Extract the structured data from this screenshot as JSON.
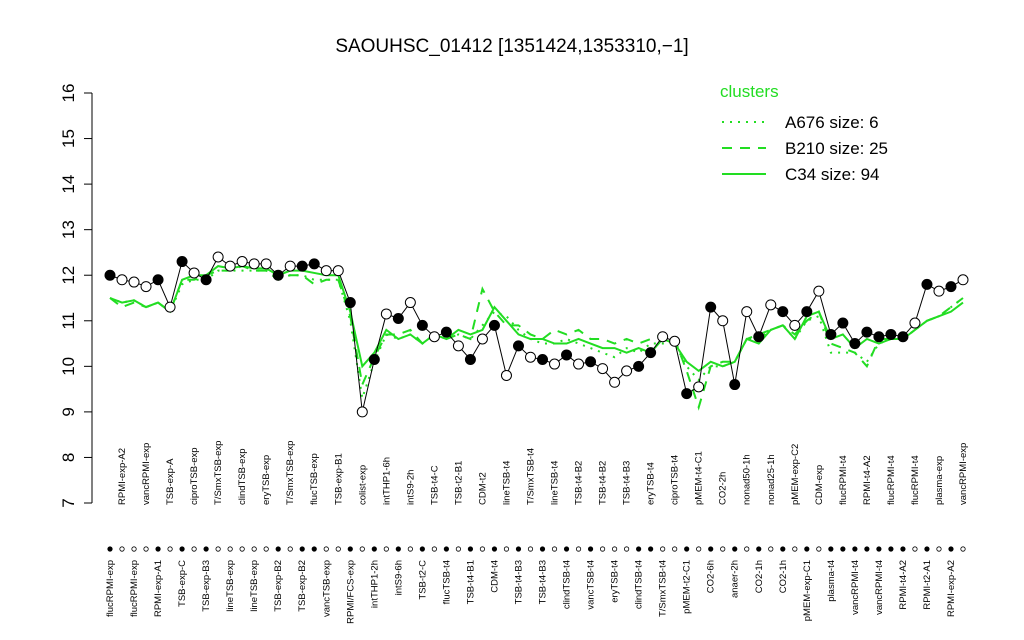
{
  "chart_data": {
    "type": "line",
    "title": "SAOUHSC_01412 [1351424,1353310,−1]",
    "ylim": [
      7,
      16
    ],
    "yticks": [
      7,
      8,
      9,
      10,
      11,
      12,
      13,
      14,
      15,
      16
    ],
    "legend_title": "clusters",
    "legend": "top-right",
    "point_color": "#000000",
    "categories": [
      "flucRPMI-exp",
      "RPMI-exp-A2",
      "flucRPMI-exp",
      "vancRPMI-exp",
      "RPMI-exp-A1",
      "TSB-exp-A",
      "TSB-exp-C",
      "ciproTSB-exp",
      "TSB-exp-B3",
      "T/SmxTSB-exp",
      "lineTSB-exp",
      "clindTSB-exp",
      "lineTSB-exp",
      "eryTSB-exp",
      "TSB-exp-B2",
      "T/SmxTSB-exp",
      "TSB-exp-B2",
      "flucTSB-exp",
      "vancTSB-exp",
      "TSB-exp-B1",
      "RPMI/FCS-exp",
      "colist-exp",
      "intTHP1-2h",
      "intTHP1-6h",
      "intS9-6h",
      "intS9-2h",
      "TSB-t2-C",
      "TSB-t4-C",
      "flucTSB-t4",
      "TSB-t2-B1",
      "TSB-t4-B1",
      "CDM-t2",
      "CDM-t4",
      "lineTSB-t4",
      "TSB-t4-B3",
      "T/SmxTSB-t4",
      "TSB-t4-B3",
      "lineTSB-t4",
      "clindTSB-t4",
      "TSB-t4-B2",
      "vancTSB-t4",
      "TSB-t4-B2",
      "eryTSB-t4",
      "TSB-t4-B3",
      "clindTSB-t4",
      "eryTSB-t4",
      "T/SmxTSB-t4",
      "ciproTSB-t4",
      "pMEM-t2-C1",
      "pMEM-t4-C1",
      "CO2-6h",
      "CO2-2h",
      "anaer-2h",
      "nonad50-1h",
      "CO2-1h",
      "nonad25-1h",
      "CO2-1h",
      "pMEM-exp-C2",
      "pMEM-exp-C1",
      "CDM-exp",
      "plasma-t4",
      "flucRPMI-t4",
      "vancRPMI-t4",
      "RPMI-t4-A2",
      "vancRPMI-t4",
      "flucRPMI-t4",
      "RPMI-t4-A2",
      "flucRPMI-t4",
      "RPMI-t2-A1",
      "plasma-exp",
      "RPMI-exp-A2",
      "vancRPMI-exp"
    ],
    "values": [
      12.0,
      11.9,
      11.85,
      11.75,
      11.9,
      11.3,
      12.3,
      12.05,
      11.9,
      12.4,
      12.2,
      12.3,
      12.25,
      12.25,
      12.0,
      12.2,
      12.2,
      12.25,
      12.1,
      12.1,
      11.4,
      9.0,
      10.15,
      11.15,
      11.05,
      11.4,
      10.9,
      10.65,
      10.75,
      10.45,
      10.15,
      10.6,
      10.9,
      9.8,
      10.45,
      10.2,
      10.15,
      10.05,
      10.25,
      10.05,
      10.1,
      9.95,
      9.65,
      9.9,
      10.0,
      10.3,
      10.65,
      10.55,
      9.4,
      9.55,
      11.3,
      11.0,
      9.6,
      11.2,
      10.65,
      11.35,
      11.2,
      10.9,
      11.2,
      11.65,
      10.7,
      10.95,
      10.5,
      10.75,
      10.65,
      10.7,
      10.65,
      10.95,
      11.8,
      11.65,
      11.75,
      11.9
    ],
    "filled": [
      true,
      false,
      false,
      false,
      true,
      false,
      true,
      false,
      true,
      false,
      false,
      false,
      false,
      false,
      true,
      false,
      true,
      true,
      false,
      false,
      true,
      false,
      true,
      false,
      true,
      false,
      true,
      false,
      true,
      false,
      true,
      false,
      true,
      false,
      true,
      false,
      true,
      false,
      true,
      false,
      true,
      false,
      false,
      false,
      true,
      true,
      false,
      false,
      true,
      false,
      true,
      false,
      true,
      false,
      true,
      false,
      true,
      false,
      true,
      false,
      true,
      true,
      true,
      true,
      true,
      true,
      true,
      false,
      true,
      false,
      true,
      false
    ],
    "series": [
      {
        "name": "A676 size: 6",
        "color": "#22dd22",
        "dash": "dotted",
        "values": [
          11.5,
          11.4,
          11.45,
          11.3,
          11.4,
          11.2,
          11.8,
          11.9,
          11.9,
          12.1,
          12.1,
          12.1,
          12.1,
          12.1,
          12.0,
          12.0,
          12.0,
          11.9,
          11.9,
          11.9,
          11.0,
          9.3,
          10.1,
          10.7,
          10.6,
          10.7,
          10.5,
          10.7,
          10.6,
          10.7,
          10.6,
          10.9,
          11.2,
          11.1,
          10.8,
          10.6,
          10.5,
          10.5,
          10.6,
          10.5,
          10.4,
          10.3,
          10.2,
          10.4,
          10.3,
          10.5,
          10.5,
          10.5,
          10.0,
          9.7,
          10.0,
          10.0,
          10.1,
          10.6,
          10.6,
          10.8,
          10.9,
          10.6,
          11.0,
          11.1,
          10.3,
          10.3,
          10.3,
          10.1,
          10.5,
          10.6,
          10.6,
          10.8,
          11.0,
          11.1,
          11.3,
          11.5
        ]
      },
      {
        "name": "B210 size: 25",
        "color": "#22dd22",
        "dash": "dashed",
        "values": [
          11.5,
          11.3,
          11.4,
          11.3,
          11.4,
          11.2,
          11.9,
          11.9,
          12.0,
          12.1,
          12.1,
          12.2,
          12.1,
          12.1,
          11.9,
          12.0,
          12.0,
          11.8,
          11.9,
          11.9,
          11.1,
          9.6,
          10.2,
          10.7,
          10.7,
          10.8,
          10.5,
          10.7,
          10.6,
          10.7,
          10.6,
          11.7,
          11.2,
          10.9,
          10.9,
          10.7,
          10.6,
          10.8,
          10.7,
          10.8,
          10.6,
          10.6,
          10.5,
          10.6,
          10.5,
          10.6,
          10.7,
          10.6,
          9.9,
          9.1,
          10.0,
          10.1,
          10.1,
          10.6,
          10.7,
          10.8,
          10.9,
          10.7,
          11.0,
          11.2,
          10.5,
          10.4,
          10.3,
          10.0,
          10.6,
          10.6,
          10.6,
          10.8,
          11.0,
          11.1,
          11.3,
          11.5
        ]
      },
      {
        "name": "C34 size: 94",
        "color": "#22dd22",
        "dash": "solid",
        "values": [
          11.5,
          11.4,
          11.45,
          11.3,
          11.4,
          11.2,
          11.9,
          12.0,
          12.0,
          12.2,
          12.15,
          12.2,
          12.15,
          12.15,
          12.0,
          12.1,
          12.1,
          12.05,
          12.0,
          12.0,
          11.2,
          10.0,
          10.3,
          10.8,
          10.6,
          10.7,
          10.5,
          10.7,
          10.6,
          10.8,
          10.7,
          10.8,
          11.3,
          11.0,
          10.7,
          10.6,
          10.6,
          10.5,
          10.5,
          10.6,
          10.5,
          10.4,
          10.4,
          10.3,
          10.4,
          10.3,
          10.6,
          10.5,
          10.1,
          9.9,
          10.1,
          10.0,
          10.1,
          10.6,
          10.5,
          10.8,
          10.9,
          10.6,
          11.1,
          11.2,
          10.6,
          10.7,
          10.4,
          10.6,
          10.5,
          10.6,
          10.6,
          10.8,
          11.0,
          11.1,
          11.2,
          11.4
        ]
      }
    ]
  }
}
